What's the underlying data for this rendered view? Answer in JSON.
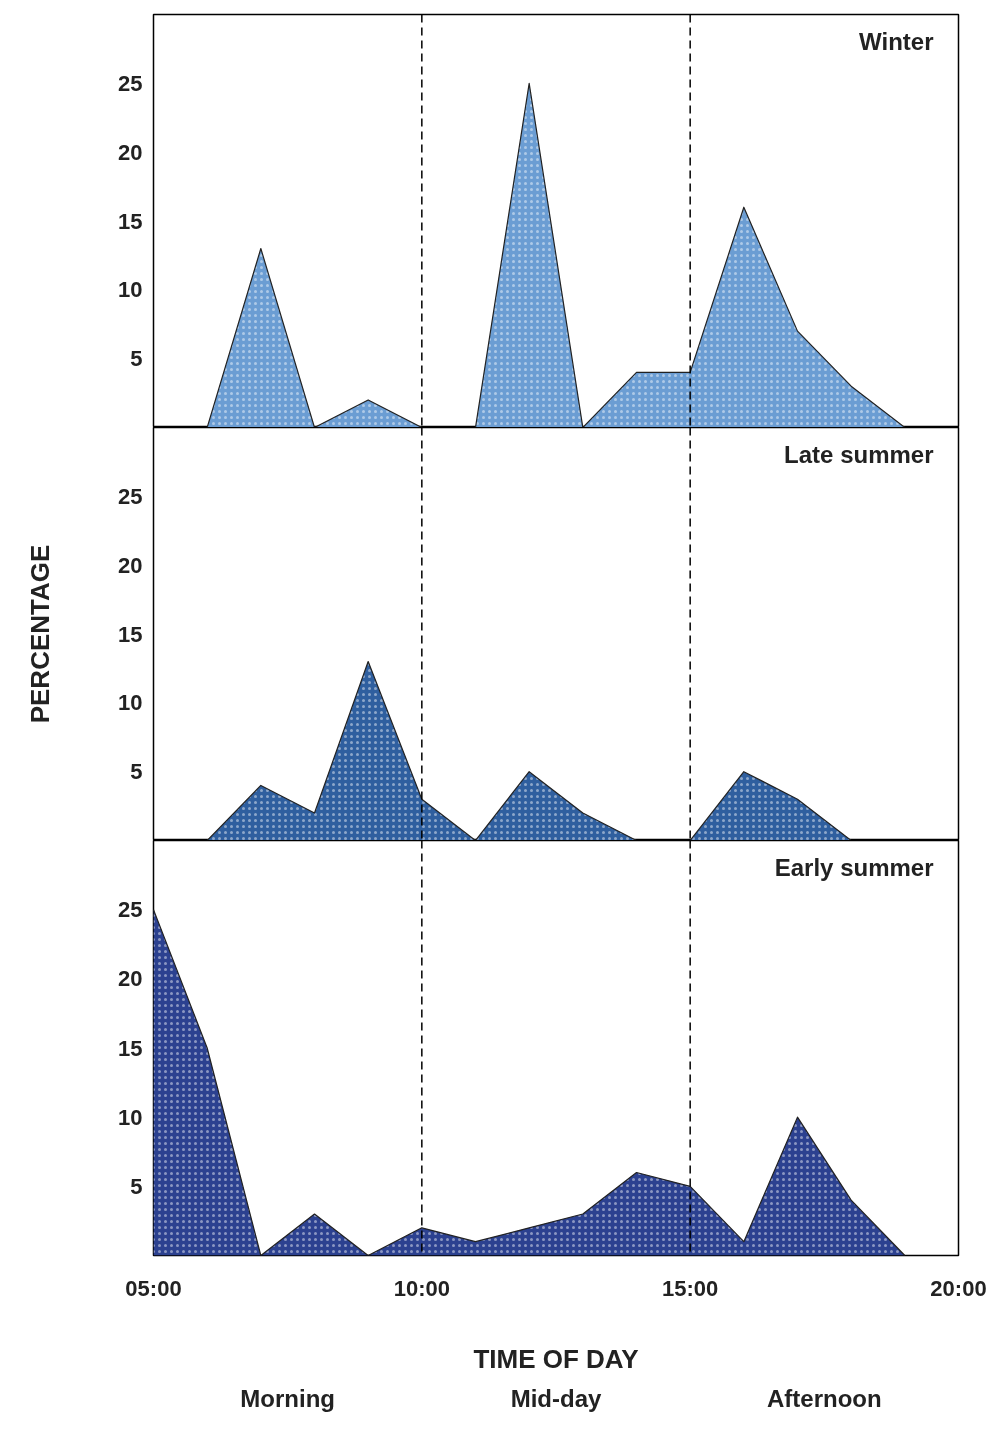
{
  "chart_data": [
    {
      "type": "area",
      "title": "Winter",
      "x": [
        5,
        6,
        7,
        8,
        9,
        10,
        11,
        12,
        13,
        14,
        15,
        16,
        17,
        18,
        19
      ],
      "series": [
        {
          "color": "#6b9dd3",
          "values": [
            0,
            0,
            13,
            0,
            2,
            0,
            0,
            25,
            0,
            4,
            4,
            16,
            7,
            3,
            0
          ]
        }
      ],
      "xlim": [
        5,
        20
      ],
      "ylim": [
        0,
        30
      ],
      "yticks": [
        5,
        10,
        15,
        20,
        25
      ],
      "tick_labels": "y",
      "grid": false,
      "ref_lines": [
        {
          "axis": "x",
          "value": 10,
          "line_style": "dashed",
          "color": "#000000"
        },
        {
          "axis": "x",
          "value": 15,
          "line_style": "dashed",
          "color": "#000000"
        }
      ]
    },
    {
      "type": "area",
      "title": "Late summer",
      "ylabel": "PERCENTAGE",
      "x": [
        5,
        6,
        7,
        8,
        9,
        10,
        11,
        12,
        13,
        14,
        15,
        16,
        17,
        18,
        19
      ],
      "series": [
        {
          "color": "#2f5f9f",
          "values": [
            0,
            0,
            4,
            2,
            13,
            3,
            0,
            5,
            2,
            0,
            0,
            5,
            3,
            0,
            0
          ]
        }
      ],
      "xlim": [
        5,
        20
      ],
      "ylim": [
        0,
        30
      ],
      "yticks": [
        5,
        10,
        15,
        20,
        25
      ],
      "tick_labels": "y",
      "grid": false,
      "ref_lines": [
        {
          "axis": "x",
          "value": 10,
          "line_style": "dashed",
          "color": "#000000"
        },
        {
          "axis": "x",
          "value": 15,
          "line_style": "dashed",
          "color": "#000000"
        }
      ]
    },
    {
      "type": "area",
      "title": "Early summer",
      "xlabel": "TIME OF DAY",
      "x": [
        5,
        6,
        7,
        8,
        9,
        10,
        11,
        12,
        13,
        14,
        15,
        16,
        17,
        18,
        19
      ],
      "series": [
        {
          "color": "#2c4190",
          "values": [
            25,
            15,
            0,
            3,
            0,
            2,
            1,
            2,
            3,
            6,
            5,
            1,
            10,
            4,
            0
          ]
        }
      ],
      "xlim": [
        5,
        20
      ],
      "ylim": [
        0,
        30
      ],
      "yticks": [
        5,
        10,
        15,
        20,
        25
      ],
      "xticks": [
        {
          "value": 5,
          "label": "05:00"
        },
        {
          "value": 10,
          "label": "10:00"
        },
        {
          "value": 15,
          "label": "15:00"
        },
        {
          "value": 20,
          "label": "20:00"
        }
      ],
      "grid": false,
      "ref_lines": [
        {
          "axis": "x",
          "value": 10,
          "line_style": "dashed",
          "color": "#000000"
        },
        {
          "axis": "x",
          "value": 15,
          "line_style": "dashed",
          "color": "#000000"
        }
      ],
      "annotations": [
        "Morning",
        "Mid-day",
        "Afternoon"
      ]
    }
  ]
}
